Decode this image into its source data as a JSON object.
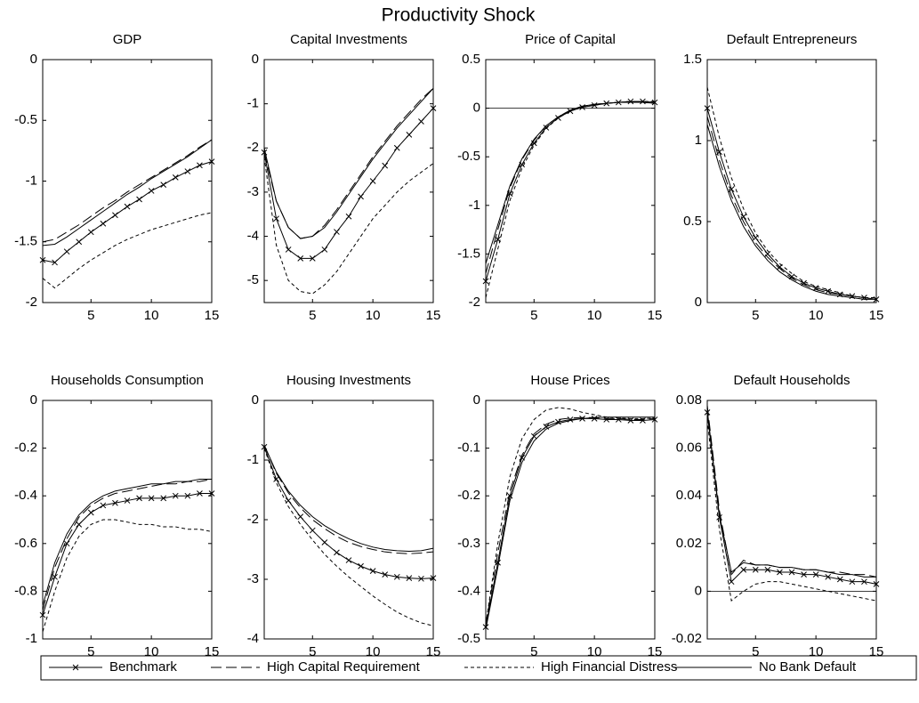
{
  "title": "Productivity Shock",
  "chart_data": [
    {
      "type": "line",
      "title": "GDP",
      "x": [
        1,
        2,
        3,
        4,
        5,
        6,
        7,
        8,
        9,
        10,
        11,
        12,
        13,
        14,
        15
      ],
      "xlim": [
        1,
        15
      ],
      "xticks": [
        5,
        10,
        15
      ],
      "ylim": [
        -2,
        0
      ],
      "yticks": [
        -2,
        -1.5,
        -1,
        -0.5,
        0
      ],
      "series": [
        {
          "name": "Benchmark",
          "color": "#000000",
          "linestyle": "solid",
          "marker": "x",
          "values": [
            -1.65,
            -1.67,
            -1.58,
            -1.5,
            -1.42,
            -1.35,
            -1.28,
            -1.21,
            -1.15,
            -1.08,
            -1.03,
            -0.97,
            -0.92,
            -0.87,
            -0.84
          ]
        },
        {
          "name": "High Capital Requirement",
          "color": "#000000",
          "linestyle": "long-dash",
          "values": [
            -1.5,
            -1.48,
            -1.42,
            -1.36,
            -1.29,
            -1.22,
            -1.16,
            -1.09,
            -1.03,
            -0.97,
            -0.91,
            -0.85,
            -0.79,
            -0.72,
            -0.66
          ]
        },
        {
          "name": "High Financial Distress",
          "color": "#000000",
          "linestyle": "short-dash",
          "values": [
            -1.8,
            -1.88,
            -1.8,
            -1.72,
            -1.65,
            -1.59,
            -1.53,
            -1.48,
            -1.44,
            -1.4,
            -1.37,
            -1.34,
            -1.31,
            -1.28,
            -1.26
          ]
        },
        {
          "name": "No Bank Default",
          "color": "#000000",
          "linestyle": "solid",
          "values": [
            -1.53,
            -1.52,
            -1.46,
            -1.39,
            -1.32,
            -1.25,
            -1.18,
            -1.11,
            -1.05,
            -0.98,
            -0.92,
            -0.86,
            -0.8,
            -0.73,
            -0.66
          ]
        }
      ]
    },
    {
      "type": "line",
      "title": "Capital Investments",
      "x": [
        1,
        2,
        3,
        4,
        5,
        6,
        7,
        8,
        9,
        10,
        11,
        12,
        13,
        14,
        15
      ],
      "xlim": [
        1,
        15
      ],
      "xticks": [
        5,
        10,
        15
      ],
      "ylim": [
        -5.5,
        0
      ],
      "yticks": [
        -5,
        -4,
        -3,
        -2,
        -1,
        0
      ],
      "series": [
        {
          "name": "Benchmark",
          "color": "#000000",
          "linestyle": "solid",
          "marker": "x",
          "values": [
            -2.1,
            -3.6,
            -4.3,
            -4.5,
            -4.5,
            -4.3,
            -3.9,
            -3.55,
            -3.1,
            -2.75,
            -2.4,
            -2.0,
            -1.7,
            -1.4,
            -1.1
          ]
        },
        {
          "name": "High Capital Requirement",
          "color": "#000000",
          "linestyle": "long-dash",
          "values": [
            -2.1,
            -3.2,
            -3.8,
            -4.05,
            -4.0,
            -3.75,
            -3.4,
            -3.0,
            -2.6,
            -2.2,
            -1.85,
            -1.5,
            -1.2,
            -0.9,
            -0.65
          ]
        },
        {
          "name": "High Financial Distress",
          "color": "#000000",
          "linestyle": "short-dash",
          "values": [
            -2.2,
            -4.2,
            -5.0,
            -5.25,
            -5.3,
            -5.1,
            -4.8,
            -4.4,
            -4.0,
            -3.6,
            -3.3,
            -3.0,
            -2.75,
            -2.55,
            -2.35
          ]
        },
        {
          "name": "No Bank Default",
          "color": "#000000",
          "linestyle": "solid",
          "values": [
            -2.0,
            -3.2,
            -3.8,
            -4.05,
            -4.0,
            -3.8,
            -3.45,
            -3.05,
            -2.65,
            -2.25,
            -1.9,
            -1.55,
            -1.25,
            -0.95,
            -0.65
          ]
        }
      ]
    },
    {
      "type": "line",
      "title": "Price of Capital",
      "x": [
        1,
        2,
        3,
        4,
        5,
        6,
        7,
        8,
        9,
        10,
        11,
        12,
        13,
        14,
        15
      ],
      "xlim": [
        1,
        15
      ],
      "xticks": [
        5,
        10,
        15
      ],
      "ylim": [
        -2,
        0.5
      ],
      "yticks": [
        -2,
        -1.5,
        -1,
        -0.5,
        0,
        0.5
      ],
      "zero_line": true,
      "series": [
        {
          "name": "Benchmark",
          "color": "#000000",
          "linestyle": "solid",
          "marker": "x",
          "values": [
            -1.78,
            -1.35,
            -0.88,
            -0.58,
            -0.36,
            -0.2,
            -0.1,
            -0.03,
            0.01,
            0.03,
            0.05,
            0.06,
            0.07,
            0.07,
            0.06
          ]
        },
        {
          "name": "High Capital Requirement",
          "color": "#000000",
          "linestyle": "long-dash",
          "values": [
            -1.7,
            -1.25,
            -0.82,
            -0.53,
            -0.33,
            -0.18,
            -0.09,
            -0.02,
            0.02,
            0.04,
            0.05,
            0.06,
            0.06,
            0.06,
            0.05
          ]
        },
        {
          "name": "High Financial Distress",
          "color": "#000000",
          "linestyle": "short-dash",
          "values": [
            -1.95,
            -1.45,
            -0.95,
            -0.62,
            -0.38,
            -0.21,
            -0.1,
            -0.03,
            0.01,
            0.03,
            0.05,
            0.06,
            0.07,
            0.07,
            0.07
          ]
        },
        {
          "name": "No Bank Default",
          "color": "#000000",
          "linestyle": "solid",
          "values": [
            -1.6,
            -1.2,
            -0.8,
            -0.52,
            -0.32,
            -0.18,
            -0.09,
            -0.02,
            0.02,
            0.04,
            0.05,
            0.06,
            0.06,
            0.06,
            0.05
          ]
        }
      ]
    },
    {
      "type": "line",
      "title": "Default Entrepreneurs",
      "x": [
        1,
        2,
        3,
        4,
        5,
        6,
        7,
        8,
        9,
        10,
        11,
        12,
        13,
        14,
        15
      ],
      "xlim": [
        1,
        15
      ],
      "xticks": [
        5,
        10,
        15
      ],
      "ylim": [
        0,
        1.5
      ],
      "yticks": [
        0,
        0.5,
        1,
        1.5
      ],
      "series": [
        {
          "name": "Benchmark",
          "color": "#000000",
          "linestyle": "solid",
          "marker": "x",
          "values": [
            1.2,
            0.93,
            0.7,
            0.53,
            0.4,
            0.3,
            0.22,
            0.16,
            0.12,
            0.09,
            0.07,
            0.05,
            0.04,
            0.03,
            0.02
          ]
        },
        {
          "name": "High Capital Requirement",
          "color": "#000000",
          "linestyle": "long-dash",
          "values": [
            1.15,
            0.88,
            0.66,
            0.5,
            0.37,
            0.28,
            0.21,
            0.15,
            0.11,
            0.08,
            0.06,
            0.05,
            0.04,
            0.03,
            0.02
          ]
        },
        {
          "name": "High Financial Distress",
          "color": "#000000",
          "linestyle": "short-dash",
          "values": [
            1.33,
            1.02,
            0.77,
            0.58,
            0.43,
            0.32,
            0.24,
            0.18,
            0.13,
            0.1,
            0.08,
            0.06,
            0.04,
            0.03,
            0.03
          ]
        },
        {
          "name": "No Bank Default",
          "color": "#000000",
          "linestyle": "solid",
          "values": [
            1.1,
            0.84,
            0.63,
            0.47,
            0.35,
            0.26,
            0.19,
            0.14,
            0.1,
            0.07,
            0.05,
            0.04,
            0.03,
            0.02,
            0.02
          ]
        }
      ]
    },
    {
      "type": "line",
      "title": "Households Consumption",
      "x": [
        1,
        2,
        3,
        4,
        5,
        6,
        7,
        8,
        9,
        10,
        11,
        12,
        13,
        14,
        15
      ],
      "xlim": [
        1,
        15
      ],
      "xticks": [
        5,
        10,
        15
      ],
      "ylim": [
        -1,
        0
      ],
      "yticks": [
        -1,
        -0.8,
        -0.6,
        -0.4,
        -0.2,
        0
      ],
      "series": [
        {
          "name": "Benchmark",
          "color": "#000000",
          "linestyle": "solid",
          "marker": "x",
          "values": [
            -0.9,
            -0.74,
            -0.6,
            -0.52,
            -0.47,
            -0.44,
            -0.43,
            -0.42,
            -0.41,
            -0.41,
            -0.41,
            -0.4,
            -0.4,
            -0.39,
            -0.39
          ]
        },
        {
          "name": "High Capital Requirement",
          "color": "#000000",
          "linestyle": "long-dash",
          "values": [
            -0.88,
            -0.7,
            -0.58,
            -0.49,
            -0.44,
            -0.41,
            -0.39,
            -0.38,
            -0.37,
            -0.36,
            -0.35,
            -0.35,
            -0.34,
            -0.34,
            -0.33
          ]
        },
        {
          "name": "High Financial Distress",
          "color": "#000000",
          "linestyle": "short-dash",
          "values": [
            -0.97,
            -0.8,
            -0.66,
            -0.57,
            -0.52,
            -0.5,
            -0.5,
            -0.51,
            -0.52,
            -0.52,
            -0.53,
            -0.53,
            -0.54,
            -0.54,
            -0.55
          ]
        },
        {
          "name": "No Bank Default",
          "color": "#000000",
          "linestyle": "solid",
          "values": [
            -0.86,
            -0.68,
            -0.56,
            -0.48,
            -0.43,
            -0.4,
            -0.38,
            -0.37,
            -0.36,
            -0.35,
            -0.35,
            -0.34,
            -0.34,
            -0.33,
            -0.33
          ]
        }
      ]
    },
    {
      "type": "line",
      "title": "Housing Investments",
      "x": [
        1,
        2,
        3,
        4,
        5,
        6,
        7,
        8,
        9,
        10,
        11,
        12,
        13,
        14,
        15
      ],
      "xlim": [
        1,
        15
      ],
      "xticks": [
        5,
        10,
        15
      ],
      "ylim": [
        -4,
        0
      ],
      "yticks": [
        -4,
        -3,
        -2,
        -1,
        0
      ],
      "series": [
        {
          "name": "Benchmark",
          "color": "#000000",
          "linestyle": "solid",
          "marker": "x",
          "values": [
            -0.78,
            -1.32,
            -1.68,
            -1.95,
            -2.18,
            -2.38,
            -2.55,
            -2.68,
            -2.78,
            -2.86,
            -2.92,
            -2.96,
            -2.98,
            -2.99,
            -2.98
          ]
        },
        {
          "name": "High Capital Requirement",
          "color": "#000000",
          "linestyle": "long-dash",
          "values": [
            -0.75,
            -1.22,
            -1.55,
            -1.8,
            -2.0,
            -2.15,
            -2.28,
            -2.38,
            -2.45,
            -2.5,
            -2.54,
            -2.56,
            -2.57,
            -2.56,
            -2.54
          ]
        },
        {
          "name": "High Financial Distress",
          "color": "#000000",
          "linestyle": "short-dash",
          "values": [
            -0.8,
            -1.38,
            -1.78,
            -2.08,
            -2.34,
            -2.58,
            -2.78,
            -2.96,
            -3.12,
            -3.28,
            -3.42,
            -3.55,
            -3.65,
            -3.73,
            -3.78
          ]
        },
        {
          "name": "No Bank Default",
          "color": "#000000",
          "linestyle": "solid",
          "values": [
            -0.75,
            -1.2,
            -1.52,
            -1.76,
            -1.95,
            -2.1,
            -2.22,
            -2.32,
            -2.4,
            -2.46,
            -2.5,
            -2.52,
            -2.53,
            -2.52,
            -2.48
          ]
        }
      ]
    },
    {
      "type": "line",
      "title": "House Prices",
      "x": [
        1,
        2,
        3,
        4,
        5,
        6,
        7,
        8,
        9,
        10,
        11,
        12,
        13,
        14,
        15
      ],
      "xlim": [
        1,
        15
      ],
      "xticks": [
        5,
        10,
        15
      ],
      "ylim": [
        -0.5,
        0
      ],
      "yticks": [
        -0.5,
        -0.4,
        -0.3,
        -0.2,
        -0.1,
        0
      ],
      "series": [
        {
          "name": "Benchmark",
          "color": "#000000",
          "linestyle": "solid",
          "marker": "x",
          "values": [
            -0.475,
            -0.34,
            -0.2,
            -0.12,
            -0.075,
            -0.055,
            -0.045,
            -0.04,
            -0.038,
            -0.038,
            -0.04,
            -0.04,
            -0.042,
            -0.042,
            -0.04
          ]
        },
        {
          "name": "High Capital Requirement",
          "color": "#000000",
          "linestyle": "long-dash",
          "values": [
            -0.47,
            -0.32,
            -0.19,
            -0.115,
            -0.07,
            -0.05,
            -0.04,
            -0.037,
            -0.036,
            -0.036,
            -0.038,
            -0.038,
            -0.04,
            -0.04,
            -0.038
          ]
        },
        {
          "name": "High Financial Distress",
          "color": "#000000",
          "linestyle": "short-dash",
          "values": [
            -0.47,
            -0.3,
            -0.16,
            -0.08,
            -0.04,
            -0.02,
            -0.015,
            -0.018,
            -0.025,
            -0.03,
            -0.035,
            -0.037,
            -0.038,
            -0.038,
            -0.037
          ]
        },
        {
          "name": "No Bank Default",
          "color": "#000000",
          "linestyle": "solid",
          "values": [
            -0.48,
            -0.35,
            -0.21,
            -0.13,
            -0.085,
            -0.06,
            -0.048,
            -0.042,
            -0.038,
            -0.036,
            -0.035,
            -0.035,
            -0.035,
            -0.035,
            -0.035
          ]
        }
      ]
    },
    {
      "type": "line",
      "title": "Default Households",
      "x": [
        1,
        2,
        3,
        4,
        5,
        6,
        7,
        8,
        9,
        10,
        11,
        12,
        13,
        14,
        15
      ],
      "xlim": [
        1,
        15
      ],
      "xticks": [
        5,
        10,
        15
      ],
      "ylim": [
        -0.02,
        0.08
      ],
      "yticks": [
        -0.02,
        0,
        0.02,
        0.04,
        0.06,
        0.08
      ],
      "zero_line": true,
      "series": [
        {
          "name": "Benchmark",
          "color": "#000000",
          "linestyle": "solid",
          "marker": "x",
          "values": [
            0.075,
            0.031,
            0.004,
            0.009,
            0.009,
            0.009,
            0.008,
            0.008,
            0.007,
            0.007,
            0.006,
            0.005,
            0.004,
            0.004,
            0.003
          ]
        },
        {
          "name": "High Capital Requirement",
          "color": "#000000",
          "linestyle": "long-dash",
          "values": [
            0.078,
            0.034,
            0.007,
            0.013,
            0.011,
            0.011,
            0.01,
            0.01,
            0.009,
            0.009,
            0.008,
            0.008,
            0.007,
            0.007,
            0.006
          ]
        },
        {
          "name": "High Financial Distress",
          "color": "#000000",
          "linestyle": "short-dash",
          "values": [
            0.072,
            0.026,
            -0.004,
            0.0,
            0.003,
            0.004,
            0.004,
            0.003,
            0.002,
            0.001,
            0.0,
            -0.001,
            -0.002,
            -0.003,
            -0.004
          ]
        },
        {
          "name": "No Bank Default",
          "color": "#000000",
          "linestyle": "solid",
          "values": [
            0.076,
            0.032,
            0.008,
            0.012,
            0.011,
            0.011,
            0.01,
            0.01,
            0.009,
            0.009,
            0.008,
            0.007,
            0.007,
            0.006,
            0.006
          ]
        }
      ]
    }
  ]
}
